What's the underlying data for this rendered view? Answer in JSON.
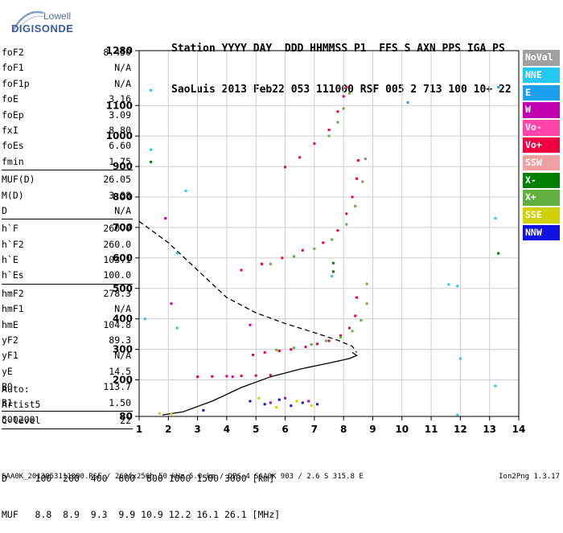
{
  "logo": {
    "line1": "Lowell",
    "line2": "DIGISONDE"
  },
  "header": {
    "line1": "Station YYYY DAY  DDD HHMMSS P1  FFS S AXN PPS IGA PS",
    "line2": "SaoLuis 2013 Feb22 053 111000 RSF 005 2 713 100 10+ 22"
  },
  "params": [
    {
      "group": [
        [
          "foF2",
          "8.450"
        ],
        [
          "foF1",
          "N/A"
        ],
        [
          "foF1p",
          "N/A"
        ],
        [
          "foE",
          "3.16"
        ],
        [
          "foEp",
          "3.09"
        ],
        [
          "fxI",
          "8.80"
        ],
        [
          "foEs",
          "6.60"
        ],
        [
          "fmin",
          "1.75"
        ]
      ]
    },
    {
      "group": [
        [
          "MUF(D)",
          "26.05"
        ],
        [
          "M(D)",
          "3.08"
        ],
        [
          "D",
          "N/A"
        ]
      ]
    },
    {
      "group": [
        [
          "h`F",
          "260.0"
        ],
        [
          "h`F2",
          "260.0"
        ],
        [
          "h`E",
          "103.1"
        ],
        [
          "h`Es",
          "100.0"
        ]
      ]
    },
    {
      "group": [
        [
          "hmF2",
          "278.3"
        ],
        [
          "hmF1",
          "N/A"
        ],
        [
          "hmE",
          "104.8"
        ],
        [
          "yF2",
          "89.3"
        ],
        [
          "yF1",
          "N/A"
        ],
        [
          "yE",
          "14.5"
        ],
        [
          "B0",
          "113.7"
        ],
        [
          "B1",
          "1.50"
        ]
      ]
    },
    {
      "group": [
        [
          "C-level",
          "22"
        ]
      ]
    }
  ],
  "auto": [
    "Auto:",
    "Artist5",
    "500200"
  ],
  "footer": {
    "d_row": "D     100  200  400  600  800 1000 1500 3000 [km]",
    "muf_row": "MUF   8.8  8.9  9.3  9.9 10.9 12.2 16.1 26.1 [MHz]"
  },
  "bottom": {
    "left": "SAA0K_2013053111000.RSF / 260fx256h 50 kHz 5.0 km / DPS-4 SAA0K 903 / 2.6 S 315.8 E",
    "right": "Ion2Png 1.3.17"
  },
  "legend": [
    {
      "label": "NoVal",
      "color": "#a0a0a0"
    },
    {
      "label": "NNE",
      "color": "#22c8f0"
    },
    {
      "label": "E",
      "color": "#1ea0f0"
    },
    {
      "label": "W",
      "color": "#c000b0"
    },
    {
      "label": "Vo-",
      "color": "#ff44aa"
    },
    {
      "label": "Vo+",
      "color": "#f00040"
    },
    {
      "label": "SSW",
      "color": "#f0a0a0"
    },
    {
      "label": "X-",
      "color": "#008000"
    },
    {
      "label": "X+",
      "color": "#60b040"
    },
    {
      "label": "SSE",
      "color": "#d0d000"
    },
    {
      "label": "NNW",
      "color": "#1010e0"
    }
  ],
  "chart_data": {
    "type": "scatter",
    "title": "",
    "xlabel": "",
    "ylabel": "",
    "xlim": [
      1,
      14
    ],
    "ylim": [
      80,
      1280
    ],
    "x_ticks": [
      1,
      2,
      3,
      4,
      5,
      6,
      7,
      8,
      9,
      10,
      11,
      12,
      13,
      14
    ],
    "y_ticks": [
      80,
      200,
      300,
      400,
      500,
      600,
      700,
      800,
      900,
      1000,
      1100,
      1280
    ],
    "grid": true,
    "series": [
      {
        "name": "Vo+",
        "color": "#f00040",
        "points": [
          [
            4.9,
            282
          ],
          [
            5.3,
            290
          ],
          [
            5.8,
            295
          ],
          [
            6.2,
            300
          ],
          [
            6.7,
            308
          ],
          [
            7.1,
            318
          ],
          [
            7.5,
            328
          ],
          [
            7.9,
            345
          ],
          [
            8.2,
            370
          ],
          [
            8.4,
            410
          ],
          [
            8.45,
            470
          ]
        ]
      },
      {
        "name": "X+",
        "color": "#60b040",
        "points": [
          [
            5.7,
            298
          ],
          [
            6.3,
            305
          ],
          [
            6.9,
            316
          ],
          [
            7.4,
            328
          ],
          [
            7.9,
            340
          ],
          [
            8.3,
            360
          ],
          [
            8.6,
            395
          ],
          [
            8.8,
            450
          ],
          [
            8.8,
            515
          ]
        ]
      },
      {
        "name": "Vo+",
        "color": "#f00040",
        "points": [
          [
            4.5,
            560
          ],
          [
            5.2,
            580
          ],
          [
            5.9,
            600
          ],
          [
            6.6,
            625
          ],
          [
            7.3,
            650
          ],
          [
            7.8,
            690
          ],
          [
            8.1,
            745
          ],
          [
            8.3,
            800
          ],
          [
            8.45,
            860
          ],
          [
            8.5,
            920
          ]
        ]
      },
      {
        "name": "X+",
        "color": "#60b040",
        "points": [
          [
            5.5,
            580
          ],
          [
            6.3,
            605
          ],
          [
            7.0,
            630
          ],
          [
            7.6,
            660
          ],
          [
            8.1,
            710
          ],
          [
            8.4,
            770
          ],
          [
            8.65,
            850
          ],
          [
            8.75,
            925
          ]
        ]
      },
      {
        "name": "Vo+",
        "color": "#f00040",
        "points": [
          [
            6.0,
            898
          ],
          [
            6.5,
            930
          ],
          [
            7.0,
            975
          ],
          [
            7.5,
            1020
          ],
          [
            7.8,
            1080
          ],
          [
            8.0,
            1130
          ],
          [
            8.1,
            1160
          ]
        ]
      },
      {
        "name": "X+",
        "color": "#60b040",
        "points": [
          [
            7.5,
            1000
          ],
          [
            7.8,
            1045
          ],
          [
            8.0,
            1090
          ],
          [
            8.2,
            1140
          ]
        ]
      },
      {
        "name": "Vo+",
        "color": "#f00040",
        "points": [
          [
            3.0,
            210
          ],
          [
            3.5,
            211
          ],
          [
            4.0,
            212
          ],
          [
            4.5,
            213
          ],
          [
            5.0,
            214
          ],
          [
            5.5,
            215
          ]
        ]
      },
      {
        "name": "NNW",
        "color": "#1010e0",
        "points": [
          [
            4.8,
            130
          ],
          [
            5.3,
            120
          ],
          [
            5.8,
            135
          ],
          [
            6.2,
            115
          ],
          [
            6.6,
            125
          ],
          [
            7.1,
            120
          ],
          [
            3.2,
            100
          ]
        ]
      },
      {
        "name": "SSE",
        "color": "#d0d000",
        "points": [
          [
            5.1,
            140
          ],
          [
            5.7,
            110
          ],
          [
            6.4,
            130
          ],
          [
            6.9,
            115
          ],
          [
            1.7,
            90
          ],
          [
            2.1,
            88
          ]
        ]
      },
      {
        "name": "W",
        "color": "#c000b0",
        "points": [
          [
            5.5,
            125
          ],
          [
            6.0,
            140
          ],
          [
            6.8,
            130
          ],
          [
            4.8,
            380
          ],
          [
            4.2,
            210
          ],
          [
            2.1,
            450
          ],
          [
            1.9,
            730
          ]
        ]
      },
      {
        "name": "NNE",
        "color": "#22c8f0",
        "points": [
          [
            1.4,
            1150
          ],
          [
            1.4,
            955
          ],
          [
            2.6,
            820
          ],
          [
            2.3,
            615
          ],
          [
            2.3,
            370
          ],
          [
            7.6,
            540
          ],
          [
            11.6,
            513
          ],
          [
            11.9,
            508
          ],
          [
            12.0,
            270
          ],
          [
            13.2,
            730
          ],
          [
            13.2,
            180
          ],
          [
            11.9,
            85
          ],
          [
            1.2,
            400
          ]
        ]
      },
      {
        "name": "E",
        "color": "#1ea0f0",
        "points": [
          [
            10.2,
            1110
          ],
          [
            13.3,
            1160
          ]
        ]
      },
      {
        "name": "X-",
        "color": "#008000",
        "points": [
          [
            1.4,
            915
          ],
          [
            13.3,
            615
          ],
          [
            7.65,
            583
          ],
          [
            7.65,
            555
          ]
        ]
      }
    ],
    "profile_solid": [
      [
        1.8,
        85
      ],
      [
        2.5,
        95
      ],
      [
        3.5,
        130
      ],
      [
        4.5,
        175
      ],
      [
        5.5,
        210
      ],
      [
        6.5,
        235
      ],
      [
        7.5,
        255
      ],
      [
        8.2,
        270
      ],
      [
        8.45,
        280
      ],
      [
        8.3,
        290
      ]
    ],
    "profile_dashed": [
      [
        1.0,
        720
      ],
      [
        2.0,
        650
      ],
      [
        3.0,
        560
      ],
      [
        4.0,
        470
      ],
      [
        5.0,
        420
      ],
      [
        6.0,
        385
      ],
      [
        7.0,
        355
      ],
      [
        7.8,
        330
      ],
      [
        8.3,
        310
      ],
      [
        8.45,
        290
      ]
    ]
  }
}
